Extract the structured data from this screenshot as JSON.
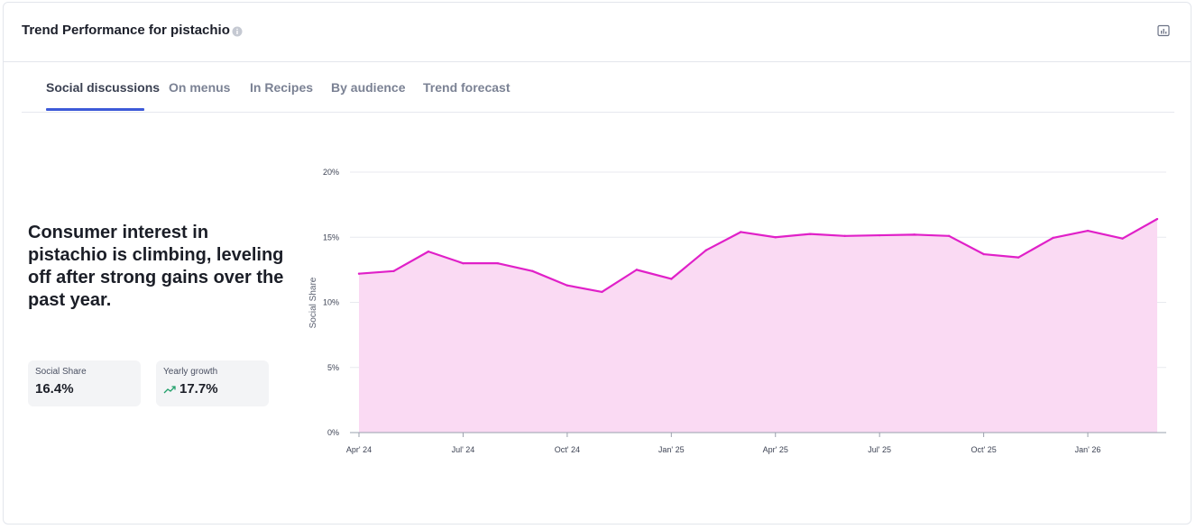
{
  "header": {
    "title": "Trend Performance for pistachio",
    "info_icon": "info-icon",
    "export_icon": "chart-export-icon"
  },
  "tabs": [
    {
      "label": "Social discussions",
      "active": true
    },
    {
      "label": "On menus",
      "active": false
    },
    {
      "label": "In Recipes",
      "active": false
    },
    {
      "label": "By audience",
      "active": false
    },
    {
      "label": "Trend forecast",
      "active": false
    }
  ],
  "summary": {
    "headline": "Consumer interest in pistachio is climbing, leveling off after strong gains over the past year."
  },
  "stats": [
    {
      "label": "Social Share",
      "value": "16.4%"
    },
    {
      "label": "Yearly growth",
      "value": "17.7%",
      "icon": "trend-up-icon"
    }
  ],
  "colors": {
    "accent": "#3d5ad8",
    "line": "#e020c8",
    "area": "#fadaf3",
    "growth": "#22a06b"
  },
  "chart_data": {
    "type": "area",
    "ylabel": "Social Share",
    "xlabel": "",
    "ylim": [
      0,
      20
    ],
    "yticks": [
      "0%",
      "5%",
      "10%",
      "15%",
      "20%"
    ],
    "xticks": [
      "Apr' 24",
      "Jul' 24",
      "Oct' 24",
      "Jan' 25",
      "Apr' 25",
      "Jul' 25",
      "Oct' 25",
      "Jan' 26"
    ],
    "grid": true,
    "x": [
      "Apr' 24",
      "May' 24",
      "Jun' 24",
      "Jul' 24",
      "Aug' 24",
      "Sep' 24",
      "Oct' 24",
      "Nov' 24",
      "Dec' 24",
      "Jan' 25",
      "Feb' 25",
      "Mar' 25",
      "Apr' 25",
      "May' 25",
      "Jun' 25",
      "Jul' 25",
      "Aug' 25",
      "Sep' 25",
      "Oct' 25",
      "Nov' 25",
      "Dec' 25",
      "Jan' 26",
      "Feb' 26",
      "Mar' 26"
    ],
    "series": [
      {
        "values": [
          12.2,
          12.4,
          13.9,
          13.0,
          13.0,
          12.4,
          11.3,
          10.8,
          12.5,
          11.8,
          14.0,
          15.4,
          15.0,
          15.25,
          15.1,
          15.15,
          15.2,
          15.1,
          13.7,
          13.45,
          14.95,
          15.5,
          14.9,
          16.4
        ]
      }
    ]
  }
}
